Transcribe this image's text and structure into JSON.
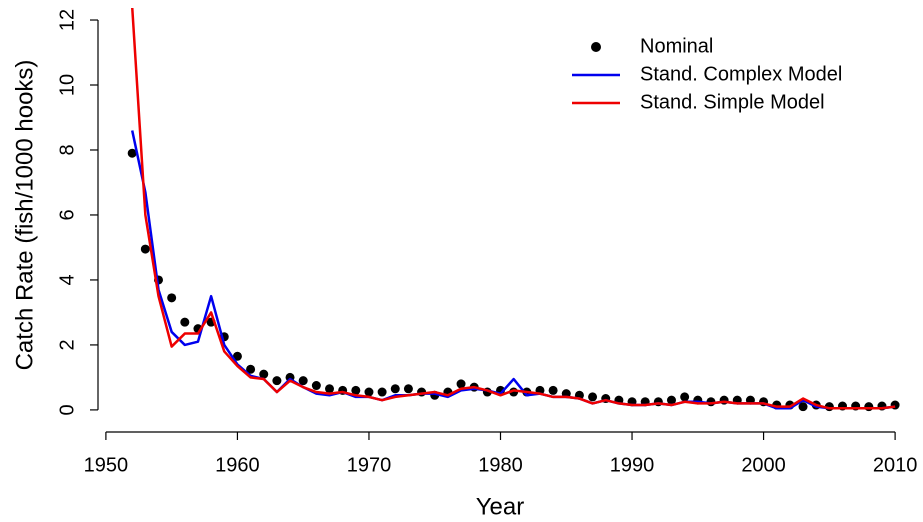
{
  "chart_data": {
    "type": "line",
    "x_label": "Year",
    "y_label": "Catch Rate (fish/1000 hooks)",
    "x": [
      1952,
      1953,
      1954,
      1955,
      1956,
      1957,
      1958,
      1959,
      1960,
      1961,
      1962,
      1963,
      1964,
      1965,
      1966,
      1967,
      1968,
      1969,
      1970,
      1971,
      1972,
      1973,
      1974,
      1975,
      1976,
      1977,
      1978,
      1979,
      1980,
      1981,
      1982,
      1983,
      1984,
      1985,
      1986,
      1987,
      1988,
      1989,
      1990,
      1991,
      1992,
      1993,
      1994,
      1995,
      1996,
      1997,
      1998,
      1999,
      2000,
      2001,
      2002,
      2003,
      2004,
      2005,
      2006,
      2007,
      2008,
      2009,
      2010
    ],
    "series": [
      {
        "name": "Nominal",
        "color": "#000000",
        "style": "points",
        "values": [
          7.9,
          4.95,
          4.0,
          3.45,
          2.7,
          2.5,
          2.7,
          2.25,
          1.65,
          1.25,
          1.1,
          0.9,
          1.0,
          0.9,
          0.75,
          0.65,
          0.6,
          0.6,
          0.55,
          0.55,
          0.65,
          0.65,
          0.55,
          0.45,
          0.55,
          0.8,
          0.7,
          0.55,
          0.6,
          0.55,
          0.55,
          0.6,
          0.6,
          0.5,
          0.45,
          0.4,
          0.35,
          0.3,
          0.25,
          0.25,
          0.25,
          0.3,
          0.4,
          0.3,
          0.25,
          0.3,
          0.3,
          0.3,
          0.25,
          0.15,
          0.15,
          0.1,
          0.15,
          0.1,
          0.12,
          0.12,
          0.1,
          0.12,
          0.15
        ]
      },
      {
        "name": "Stand. Complex Model",
        "color": "#0000ee",
        "style": "line",
        "values": [
          8.6,
          6.7,
          3.7,
          2.4,
          2.0,
          2.1,
          3.5,
          2.0,
          1.4,
          1.05,
          0.95,
          0.55,
          0.95,
          0.7,
          0.5,
          0.45,
          0.55,
          0.4,
          0.4,
          0.3,
          0.45,
          0.45,
          0.5,
          0.5,
          0.4,
          0.6,
          0.65,
          0.6,
          0.5,
          0.95,
          0.45,
          0.5,
          0.4,
          0.4,
          0.35,
          0.2,
          0.3,
          0.2,
          0.15,
          0.15,
          0.2,
          0.15,
          0.25,
          0.25,
          0.2,
          0.25,
          0.2,
          0.2,
          0.2,
          0.05,
          0.05,
          0.3,
          0.1,
          0.05,
          0.05,
          0.05,
          0.05,
          0.05,
          0.1
        ]
      },
      {
        "name": "Stand. Simple Model",
        "color": "#ee0000",
        "style": "line",
        "values": [
          12.4,
          6.0,
          3.5,
          1.95,
          2.35,
          2.35,
          3.0,
          1.8,
          1.35,
          1.0,
          0.95,
          0.55,
          0.9,
          0.7,
          0.55,
          0.5,
          0.55,
          0.45,
          0.4,
          0.3,
          0.4,
          0.45,
          0.5,
          0.55,
          0.45,
          0.65,
          0.7,
          0.6,
          0.45,
          0.6,
          0.55,
          0.5,
          0.4,
          0.4,
          0.35,
          0.2,
          0.3,
          0.2,
          0.15,
          0.15,
          0.2,
          0.15,
          0.25,
          0.2,
          0.2,
          0.25,
          0.2,
          0.2,
          0.2,
          0.1,
          0.1,
          0.35,
          0.15,
          0.05,
          0.05,
          0.05,
          0.05,
          0.05,
          0.1
        ]
      }
    ],
    "xlim": [
      1949.4,
      2010.6
    ],
    "ylim": [
      -0.68,
      12.37
    ],
    "xticks": [
      1950,
      1960,
      1970,
      1980,
      1990,
      2000,
      2010
    ],
    "yticks": [
      0,
      2,
      4,
      6,
      8,
      10,
      12
    ],
    "legend": "topright",
    "grid": false
  }
}
